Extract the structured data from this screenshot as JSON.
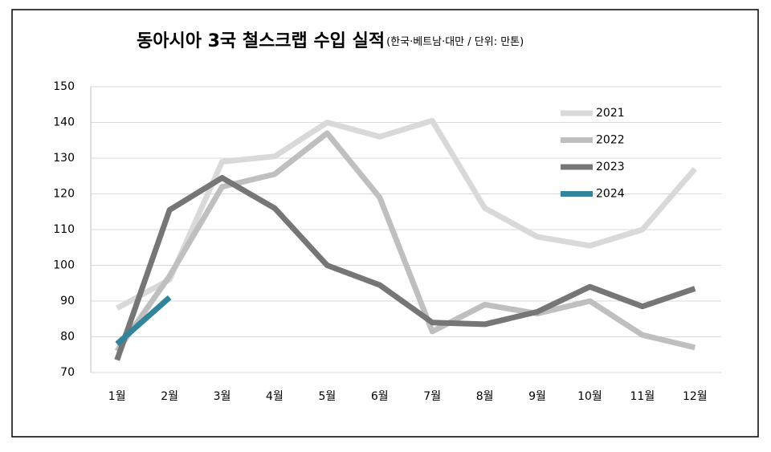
{
  "chart_data": {
    "type": "line",
    "title": "동아시아 3국 철스크랩 수입 실적",
    "subtitle": "(한국·베트남·대만 / 단위: 만톤)",
    "categories": [
      "1월",
      "2월",
      "3월",
      "4월",
      "5월",
      "6월",
      "7월",
      "8월",
      "9월",
      "10월",
      "11월",
      "12월"
    ],
    "series": [
      {
        "name": "2021",
        "color": "#d9d9d9",
        "values": [
          88,
          96,
          129,
          130.5,
          140,
          136,
          140.5,
          116,
          108,
          105.5,
          110,
          127
        ]
      },
      {
        "name": "2022",
        "color": "#bfbfbf",
        "values": [
          76,
          97,
          122,
          125.5,
          137,
          119,
          81.5,
          89,
          86.5,
          90,
          80.5,
          77
        ]
      },
      {
        "name": "2023",
        "color": "#767676",
        "values": [
          73.5,
          115.5,
          124.5,
          116,
          100,
          94.5,
          84,
          83.5,
          87,
          94,
          88.5,
          93.5
        ]
      },
      {
        "name": "2024",
        "color": "#31849b",
        "values": [
          78,
          91,
          null,
          null,
          null,
          null,
          null,
          null,
          null,
          null,
          null,
          null
        ]
      }
    ],
    "ylim": [
      70,
      150
    ],
    "yticks": [
      70,
      80,
      90,
      100,
      110,
      120,
      130,
      140,
      150
    ],
    "grid": true,
    "legend": "upper right"
  }
}
